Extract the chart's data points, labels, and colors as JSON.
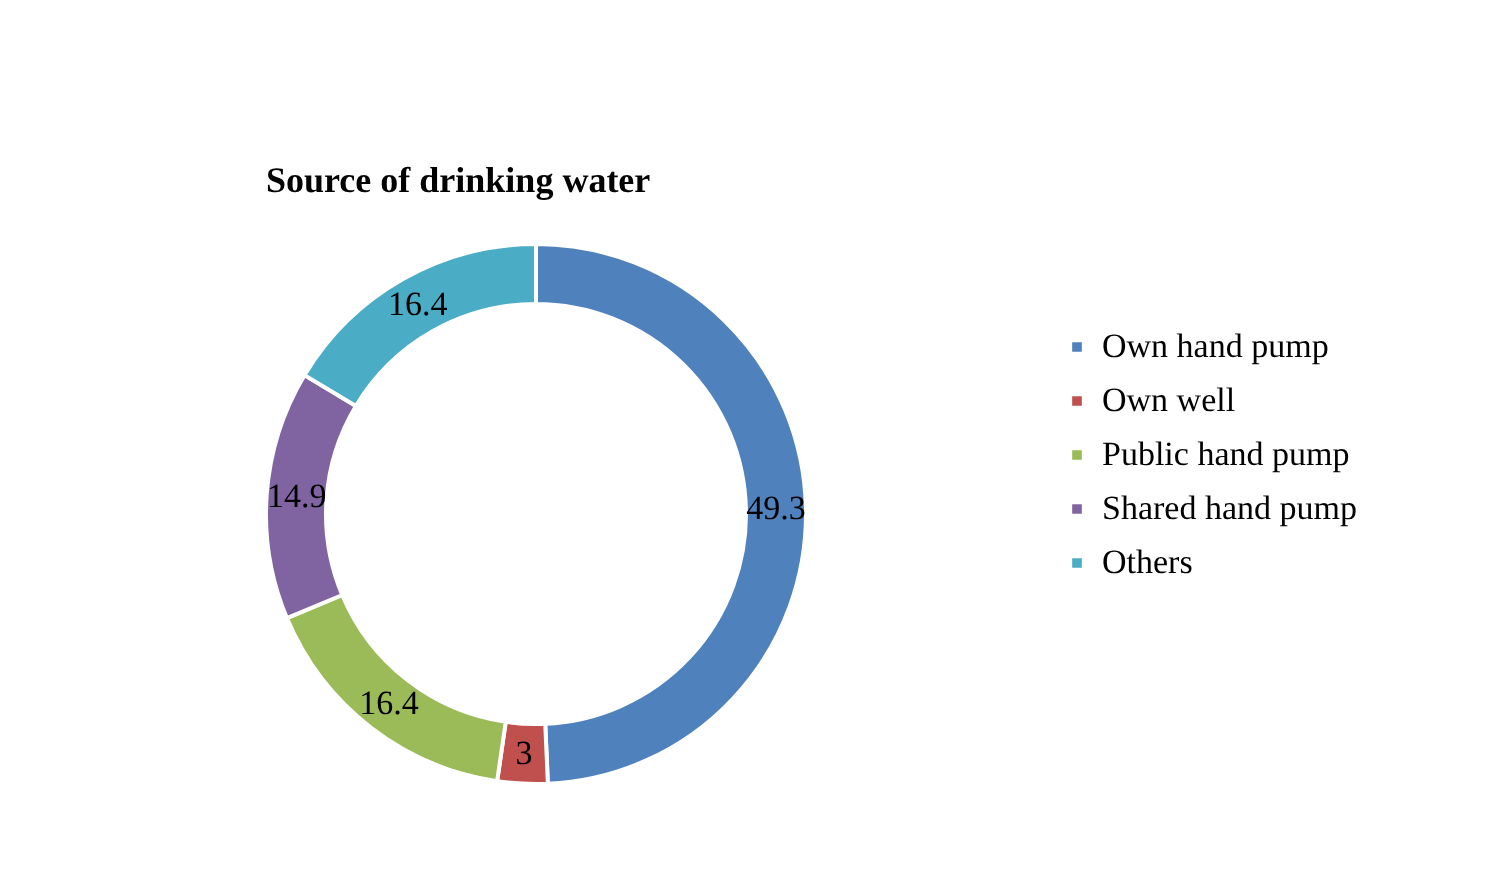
{
  "chart_data": {
    "type": "donut",
    "title": "Source of drinking water",
    "categories": [
      "Own hand pump",
      "Own well",
      "Public hand pump",
      "Shared hand pump",
      "Others"
    ],
    "values": [
      49.3,
      3,
      16.4,
      14.9,
      16.4
    ],
    "colors": [
      "#4f81bd",
      "#c0504d",
      "#9bbb59",
      "#8064a2",
      "#4bacc6"
    ],
    "data_labels": true,
    "legend": "right"
  }
}
